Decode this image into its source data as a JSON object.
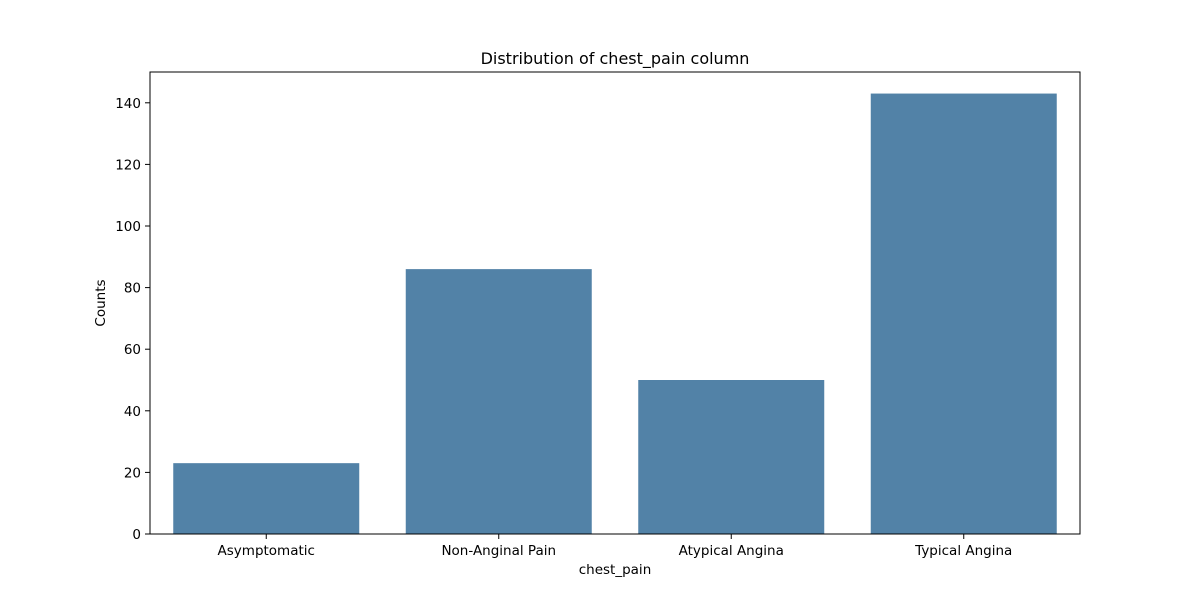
{
  "chart_data": {
    "type": "bar",
    "title": "Distribution of chest_pain column",
    "xlabel": "chest_pain",
    "ylabel": "Counts",
    "categories": [
      "Asymptomatic",
      "Non-Anginal Pain",
      "Atypical Angina",
      "Typical Angina"
    ],
    "values": [
      23,
      86,
      50,
      143
    ],
    "ylim": [
      0,
      150
    ],
    "yticks": [
      "0",
      "20",
      "40",
      "60",
      "80",
      "100",
      "120",
      "140"
    ],
    "grid": false,
    "bar_color": "#5282a7"
  }
}
